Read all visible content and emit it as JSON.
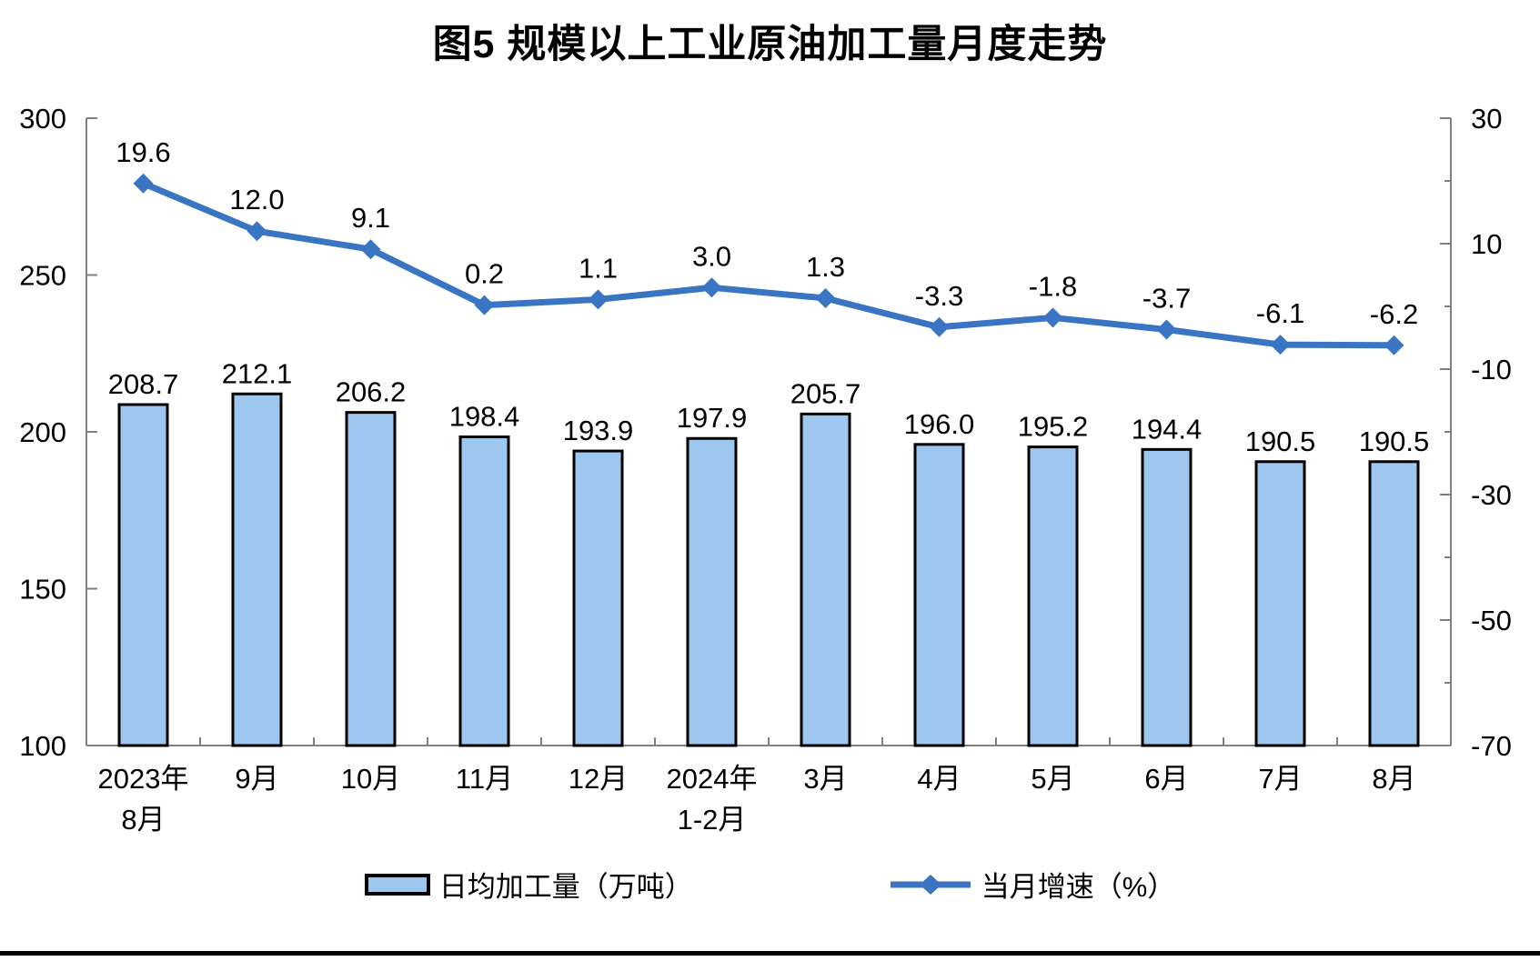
{
  "colors": {
    "bar_fill": "#9EC7EF",
    "bar_border": "#000000",
    "line": "#3A75C4",
    "axis": "#808080",
    "text": "#000000",
    "bottom_rule": "#000000"
  },
  "chart_data": {
    "type": "bar+line",
    "title": "图5  规模以上工业原油加工量月度走势",
    "categories": [
      "2023年8月",
      "9月",
      "10月",
      "11月",
      "12月",
      "2024年1-2月",
      "3月",
      "4月",
      "5月",
      "6月",
      "7月",
      "8月"
    ],
    "category_tick_lines": [
      [
        "2023年",
        "8月"
      ],
      [
        "9月"
      ],
      [
        "10月"
      ],
      [
        "11月"
      ],
      [
        "12月"
      ],
      [
        "2024年",
        "1-2月"
      ],
      [
        "3月"
      ],
      [
        "4月"
      ],
      [
        "5月"
      ],
      [
        "6月"
      ],
      [
        "7月"
      ],
      [
        "8月"
      ]
    ],
    "series": [
      {
        "name": "日均加工量（万吨）",
        "type": "bar",
        "axis": "left",
        "values": [
          208.7,
          212.1,
          206.2,
          198.4,
          193.9,
          197.9,
          205.7,
          196.0,
          195.2,
          194.4,
          190.5,
          190.5
        ],
        "labels": [
          "208.7",
          "212.1",
          "206.2",
          "198.4",
          "193.9",
          "197.9",
          "205.7",
          "196.0",
          "195.2",
          "194.4",
          "190.5",
          "190.5"
        ]
      },
      {
        "name": "当月增速（%）",
        "type": "line",
        "axis": "right",
        "values": [
          19.6,
          12.0,
          9.1,
          0.2,
          1.1,
          3.0,
          1.3,
          -3.3,
          -1.8,
          -3.7,
          -6.1,
          -6.2
        ],
        "labels": [
          "19.6",
          "12.0",
          "9.1",
          "0.2",
          "1.1",
          "3.0",
          "1.3",
          "-3.3",
          "-1.8",
          "-3.7",
          "-6.1",
          "-6.2"
        ]
      }
    ],
    "left_axis": {
      "min": 100,
      "max": 300,
      "ticks": [
        300,
        250,
        200,
        150,
        100
      ]
    },
    "right_axis": {
      "min": -70,
      "max": 30,
      "tick_labels": [
        30,
        10,
        -10,
        -30,
        -50,
        -70
      ],
      "minor_ticks": [
        20,
        0,
        -20,
        -40,
        -60
      ]
    },
    "grid": false,
    "legend_position": "bottom"
  }
}
